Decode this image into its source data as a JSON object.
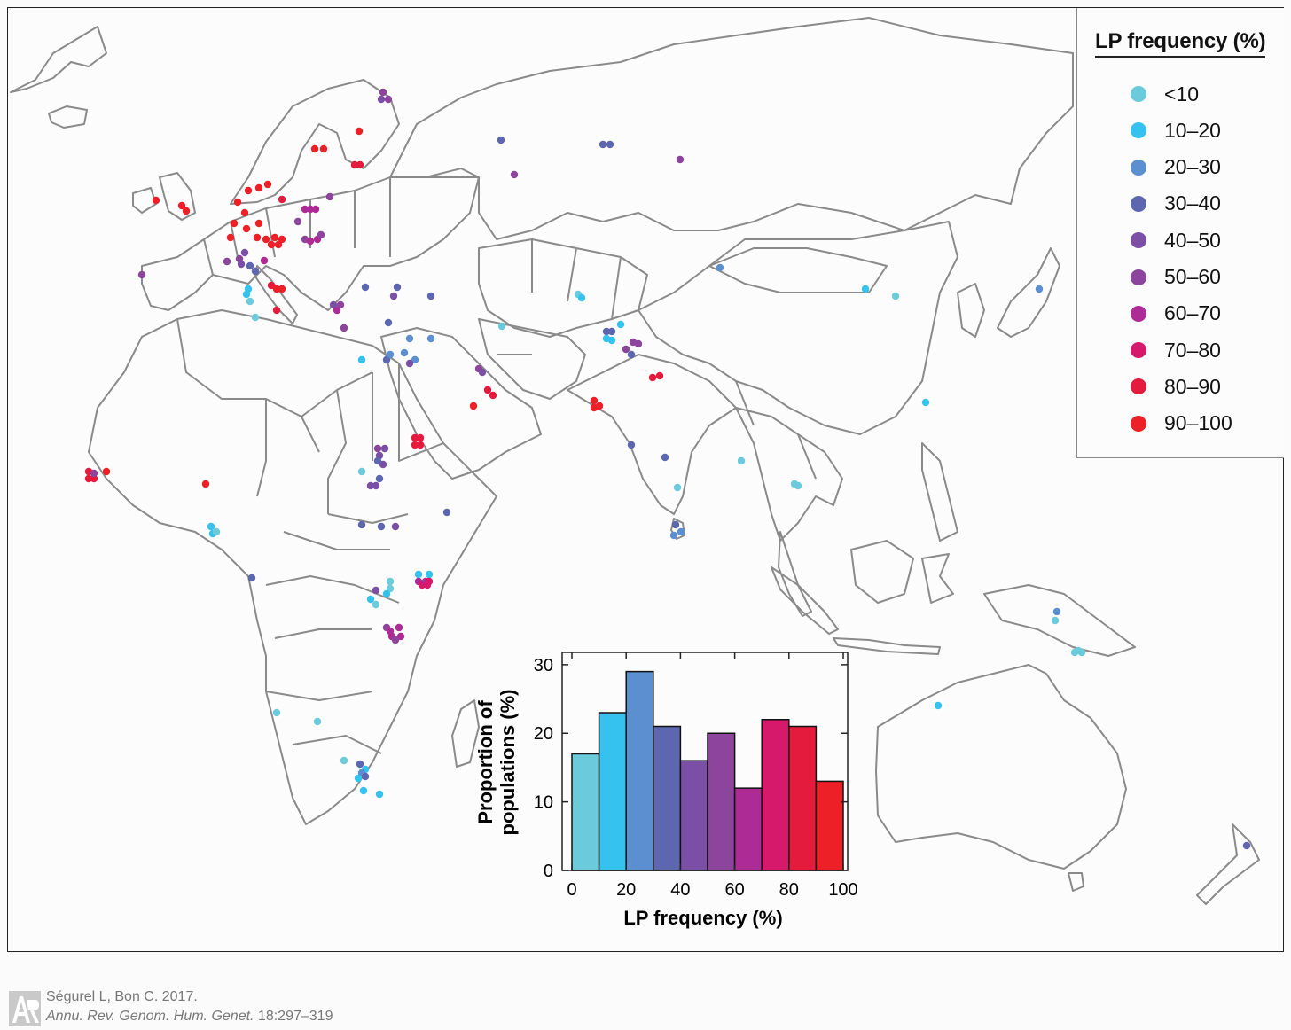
{
  "legend": {
    "title": "LP frequency (%)",
    "items": [
      {
        "label": "<10",
        "color": "#6ccbdb"
      },
      {
        "label": "10–20",
        "color": "#36c2ef"
      },
      {
        "label": "20–30",
        "color": "#5b8fcf"
      },
      {
        "label": "30–40",
        "color": "#5d67b0"
      },
      {
        "label": "40–50",
        "color": "#7b4fa6"
      },
      {
        "label": "50–60",
        "color": "#8d449c"
      },
      {
        "label": "60–70",
        "color": "#ad2b94"
      },
      {
        "label": "70–80",
        "color": "#d6196b"
      },
      {
        "label": "80–90",
        "color": "#e51b3d"
      },
      {
        "label": "90–100",
        "color": "#ec2026"
      }
    ]
  },
  "chart_data": {
    "type": "bar",
    "categories": [
      "0–10",
      "10–20",
      "20–30",
      "30–40",
      "40–50",
      "50–60",
      "60–70",
      "70–80",
      "80–90",
      "90–100"
    ],
    "values": [
      17,
      23,
      29,
      21,
      16,
      20,
      12,
      22,
      21,
      13
    ],
    "colors": [
      "#6ccbdb",
      "#36c2ef",
      "#5b8fcf",
      "#5d67b0",
      "#7b4fa6",
      "#8d449c",
      "#ad2b94",
      "#d6196b",
      "#e51b3d",
      "#ec2026"
    ],
    "xlabel": "LP frequency (%)",
    "ylabel_line1": "Proportion of",
    "ylabel_line2": "populations (%)",
    "xlim": [
      0,
      100
    ],
    "ylim": [
      0,
      30
    ],
    "xticks": [
      "0",
      "20",
      "40",
      "60",
      "80",
      "100"
    ],
    "yticks": [
      "0",
      "10",
      "20",
      "30"
    ]
  },
  "credit": {
    "authors": "Ségurel L, Bon C. 2017.",
    "journal": "Annu. Rev. Genom. Hum. Genet.",
    "pages": " 18:297–319"
  }
}
